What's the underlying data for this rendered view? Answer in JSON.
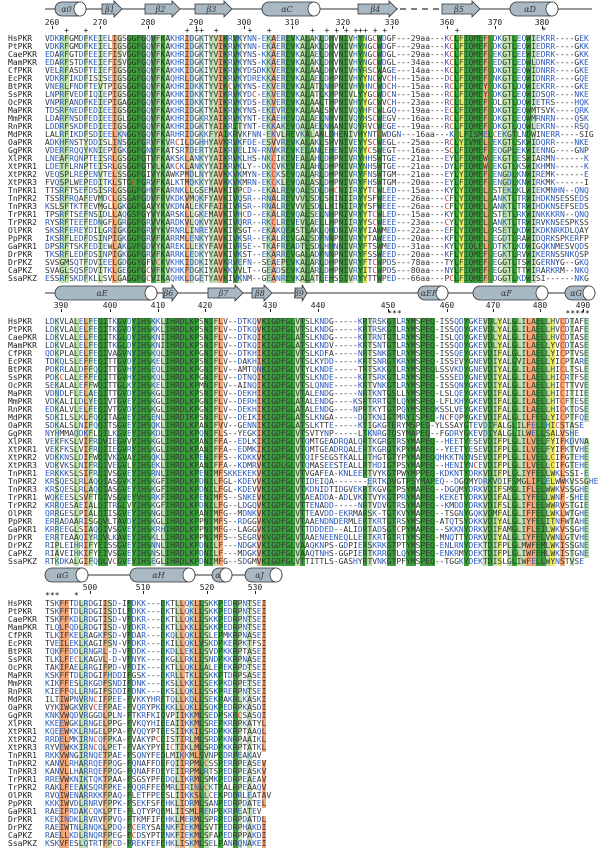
{
  "palette": {
    "identical": "#3a9e3a",
    "conserved": "#bfe0ae",
    "hydrophobic": "#f2a77a",
    "aromatic": "#e6ea5c",
    "text_charged": "#2b5cc0",
    "text_cys": "#d83a2a",
    "text_default": "#333333",
    "structure_fill": "#a9b9c4",
    "structure_stroke": "#333333"
  },
  "species": [
    "HsPKR",
    "PtPKR",
    "CaePKR",
    "MamPKR",
    "CfPKR",
    "EcPKR",
    "BtPKR",
    "SsPKR",
    "OcPKR",
    "MaPKR",
    "MmPKR",
    "RnPKR",
    "MdPKR",
    "OaPKR",
    "GgPKR",
    "XlPKR",
    "XtPKR1",
    "XtPKR2",
    "XtPKR3",
    "TnPKR1",
    "TnPKR2",
    "TnPKR3",
    "TrPKR1",
    "TrPKR2",
    "OlPKR",
    "PpPKR",
    "GaPKR1",
    "DrPKR",
    "DrPKZ",
    "CaPKZ",
    "SsaPKZ"
  ],
  "blocks": [
    {
      "structure": [
        {
          "type": "helix",
          "label": "α0"
        },
        {
          "type": "strand",
          "label": "β1"
        },
        {
          "type": "strand",
          "label": "β2"
        },
        {
          "type": "strand",
          "label": "β3"
        },
        {
          "type": "helix",
          "label": "αC"
        },
        {
          "type": "strand",
          "label": "β4"
        },
        {
          "type": "disordered",
          "label": ""
        },
        {
          "type": "strand",
          "label": "β5"
        },
        {
          "type": "helix",
          "label": "αD"
        }
      ],
      "numbers": [
        "260",
        "270",
        "280",
        "290",
        "300",
        "310",
        "320",
        "330",
        "360",
        "370",
        "380"
      ],
      "markers": [
        {
          "col": 4,
          "mark": "+"
        },
        {
          "col": 8,
          "mark": "+"
        },
        {
          "col": 29,
          "mark": "+"
        },
        {
          "col": 31,
          "mark": "+"
        },
        {
          "col": 32,
          "mark": "+"
        },
        {
          "col": 35,
          "mark": "+"
        },
        {
          "col": 42,
          "mark": "+"
        },
        {
          "col": 46,
          "mark": "+"
        },
        {
          "col": 55,
          "mark": "+"
        },
        {
          "col": 58,
          "mark": "+"
        },
        {
          "col": 60,
          "mark": "+"
        },
        {
          "col": 62,
          "mark": "+"
        },
        {
          "col": 64,
          "mark": "+"
        },
        {
          "col": 65,
          "mark": "+"
        },
        {
          "col": 66,
          "mark": "+"
        },
        {
          "col": 68,
          "mark": "+"
        },
        {
          "col": 70,
          "mark": "+"
        },
        {
          "col": 85,
          "mark": "+"
        },
        {
          "col": 103,
          "mark": "*"
        }
      ],
      "sequences": [
        "VDKRFGMDFKEIELIGSGGFGQVFKAKHRIDGKTYVIKRVKYNN-EKAEREVKALAKLDHVNIVHYNGCWDGF---29aa---KCLFIQMEFCDKGTLEQWIEKRR----GEK",
        "VDKRFGMDFKEIELIGSGGFGQVFKAKHRIDGKTYVIKRVKYNN-EKAEREVKALAKLDHVNIVHYNGCWDGF---29aa---KCLFIQMEFCDKGTLEQWIEDRR----GKK",
        "EDARFGTDFEEIEFISVGGFGQVFKAKHRIDGKTYVIKRVKYNS-KKAEREVKALAELDHVNIVHYNGCWDGL---29aa---KCLFIQMEFCEKGTLEEWIEDRK----GKK",
        "EDARFSTDFKEIEFISVGGFGQVFKAKHRIDGKTYVIKRVKYNS-KKAEREVKALAKLDHVNIVHYNGCWDGL---34aa---KCLFIQMEFCEDGTLEDWLDNRK----GKE",
        "VELRFASDFTEIEFIGSGGYGQVFKAKHKIDGKIYVIKRVKYDSDKKVEREVKALAALDHVNIVHYRSCWAGE---14aa---KCLFIQMEFCDKGTLEQWIDNRR----GKE",
        "VDKRFIKDFISISEIGSGGFGQVFKAQHRLDGKTYVIKRVKYDREKKAEREVKALAELDHPNIVHYYNCWVCH---15aa---DCLFIQMEFCNKGTLEQWIDNRR----GQE",
        "VNERLFNDFTEVTPIGSGGFGQVFKAKHRIDKKTYVIKCVKYNS-EKVEREVKALATLNHPNIVHYHNCWDCH---15aa---RCLFIQMEYCDKGTLDQWIEKRR----GKE",
        "LNPRFVEDFIQIEPIGSGGFGQVFKAKHKIDKKTYVIKRVKYDC-EKVEREVKALATLKHPNIVLYYGCWDCN---15aa---RCLFIQMEYCDKGTLEQWIDSQR----NKE",
        "VNPRFANDFKEIEPIGAGGFGQVFKAKHKIDKKTYVIKRVKYDS-EKVEREVKALAALTHPNIVHYYGCWVCH---23aa---RCLLIQMEFCDLGTLDQWIETRS----HQK",
        "TDSRFNEDFEDIEEIGSGGFGQVFKAKHRIDGKTYAIKRVKYNS-EKEVREVKALAALSHVNIVQYHFCWLGQ---19aa---ECLFIQMEFCDKGTLEQWMTSVK----QRK",
        "LDARFNSDFEDIEEIGLGGFGQVFKAKHRIDGKRYAIKRVKYNT-EKAEHEVQALAELNHVNIVQYHSCWEGV---16aa---RCLFIQMEFCDKGTLEQWMRNRN----QSK",
        "LDDRFSKDFEDIEEIGSGGFGQVFKAKHRIDGKTYAIKRITYNT-EKKAKEVQALAELNHANIVQYRVCWEGE---19aa---RCLFIQMEFCDKGTLQQWLEKRN----RSQ",
        "LALRFIKDFSDIEELKNGGYGQVFKARHRIDGKKFYAIKRVKFNN-EKVLREVKALANLDHENIVHYNTCWDGN---16aa---KCLFISMELCEKGTLNDWINERR----SIG",
        "ADKHFNSTYDDISLINSGGFGRVFKVRCILDGHHYAVKRVKFDE-ESVVREVKALAKLSHVNIVEYYSCWEGL---25aa---RCLYIVMELCEKGTLSKWIDQRR----NKE",
        "VDERFRQQYKNIEPIGKGGFGNVFKATSRTDERTYAIKRVELIN-RNVKREVKELANLEHENIVRYYCSWEGT---16aa---SCLFIQMEFCEQGPLEKWIENNG----GNP",
        "LNEAFRQNPTEISRLGSGGFGTVFKAKSKLANKYYAIKRVKLHS-NKCIKEVEALAHLDHPNIVRYHHSWTGE---21aa---EYLFIQMEWCEKGTLESWIARMN------K",
        "LDETFLRNPTEISRLGSGGFGTVLKAKCKLANKYYAIKRVKLY--DKCVKEVEALAHLDHPNIVRYNHSWTGE---21aa---DYLFIQMEWCEKGTLKSWIKHMN------K",
        "VEQSPLREPENVTELSSGGFGIVYKAWKPMDLNYYAVKKVKMYN-EKCKSEVQALARLDHPNIVRYFNSWTGM---21aa---EYLYIQMEFCENGDLKNWIREMK------E",
        "FVQSPLWEPEDITKLSTGCFGRVFKALKTMDKKYYAVKKVKMRN-EKCKLEVQALASLDHPNIVRYFHSWTGM---20aa---EYLFIQMEFCENGDLKNWIRKMK------I",
        "TTSRFTSEFDSISRLGSGGFGHVFKARNKLLGSEMAVKIVPCD--EKALREVQALSDLDHCNIIRYYTCWLED---15aa---KYLYIQMELCSTEKLKLWIEKMNHN--QNQ",
        "TSSRFRQAFEVMDCLGSGAFGDVFRVKDKVMQKFYAVKIVQSR--RNALREVVVLSDLSHINIIRYYSFWEEE---26aa---CFLYIQMELCANKTLTRWIHDKNSESSEDS",
        "KSLSFTKTFEVMGLLGKGGFGAVYKVKDNALEKFFAIKIVRSR--RNALREVVVLSDLLHINIIRYYSFWEEE---26aa---CFLYIQMELCANKTLTRWIHDKNSEFSEDS",
        "TPSRFTSEFNSIDLLAQGSFGYVYKARSKLLGKEMAVKIVHCD--EKALREVQALSELNHPNIVRYYTCWLED---15aa---KYLYIQMELCSTETLRKWINKKKRN--QNQ",
        "RYSRFTEEFEDNGFLGRGGFGRVVKARDKVLQKVYAVKIVQRR--RKCLREVEVLAELLHPNIIRYYSCWEEE---23aa---CYLYIQMELCANKTLTRWIRVKNSESPKSS",
        "SKSRFEREYDILGRIGKGGFGRVYKVRNRLINREYAVKIVSGT--EKAKQEASTLAKLQHDNIVRYYIAWMED---22aa---EFLYIQMELCRSETLKDWIKDKNRKDLQAY",
        "IKSRFLEDFDSINPIGKGGFGRVFKARRMLENKYYAVKIVKSR--EKALREVGALSDFNNPNIVRYYTAWEED---20aa---KFLYIQMELCEGDTLRAWIDQRKSPKERFP",
        "DPSRFTSKFEDIEWLAKGVFGDVYKAREKLLEKYFAVKIVRSE--TKAFREADTLSDLHHNNIVRYFTSWMED---31aa---KYLYIQLELCDTKTLKDWIGQKNMESVQDS",
        "TKSRFLEDFDSINPIGKGGFGRVFKARRKLEDKYYAVKIVKST--EKARREVGALADFNNPNIVRYFSSWEED---20aa---KFLYIQMEFCEGKTLRVWIKERNSSNKQSP",
        "SVSGMSQTFDVIEELGDGGYGFVCKVKHKIDDKIYAVKRVEFN--SEAEPEVKALARLDHPNIVRYFTCWPDS---78aa---TYLFIQMEFCEGGTLTSWIGERNYG--GKQ",
        "SVAGLSQSFDVITKLGEGGFGCVFKVKHKFDGKIYAVKKVVLT--GEADSEVKALARLDHPNIVRYITCWPDS---80aa---NYLFIQMEFCEGGTLTTWIRARKRM--NKQ",
        "ESSRFSKDFKLLSVLGAGGFGCVIKAQHKLDGETYAVKIVKNM--GEANREVKALATLEHSSIVRYYTTWPED---66aa---PCLFIQMEFCDGGTLKDWISI------NKG"
      ]
    },
    {
      "structure": [
        {
          "type": "helix",
          "label": "αE"
        },
        {
          "type": "strand",
          "label": "β6"
        },
        {
          "type": "strand",
          "label": "β7"
        },
        {
          "type": "strand",
          "label": "β8"
        },
        {
          "type": "strand",
          "label": "β9"
        },
        {
          "type": "helix",
          "label": "αEF"
        },
        {
          "type": "helix",
          "label": "αF"
        },
        {
          "type": "helix",
          "label": "αG"
        }
      ],
      "numbers": [
        "390",
        "400",
        "410",
        "420",
        "430",
        "440",
        "450",
        "460",
        "470",
        "480",
        "490"
      ],
      "markers": [
        {
          "col": 71,
          "mark": "*"
        },
        {
          "col": 72,
          "mark": "*"
        },
        {
          "col": 73,
          "mark": "*"
        },
        {
          "col": 108,
          "mark": "*"
        },
        {
          "col": 109,
          "mark": "*"
        },
        {
          "col": 110,
          "mark": "*"
        },
        {
          "col": 111,
          "mark": "*"
        },
        {
          "col": 112,
          "mark": "*"
        }
      ],
      "sequences": [
        "LDKVLALELFEQITKGVDYIHSKKLIHRDLKPSNIFLV--DTKQVKIGDFGLVTSLKNDG-----KRTRSKGTLRYMSPEQ-ISSQDYGKEVDLYALGLILAELLHVCDTAFE",
        "LDKVLALELFEQITKGVDYIHSKKLIHRDLKPSNIFLV--DTKQVKIGDFGLVTSLKNDG-----KRTRSKGTLRYMSPEQ-ISSQDYGKEVDLYALGLILAELLHVCDTAFE",
        "LDKVLALELFEQITKGLDYIHSKNIIHRDLKPSNIFLV--DTKQIKIGDFGLATSLKNDG-----KRTRNTGTLRYMSPEQ-ISLQDYGKEVDLYALGLILAELLHVCDTASE",
        "LDKVLALELFEQITKGLDYIHSKNIIHRDLKPSNIFLV--DTKQIKIGDFGLATSLKNDV-----KRTSNTGTLRYMSPEQ-ISSQDYGKEVDLYALGLILAELLYVCDTASE",
        "QDKPLALELFEQIVAGVNYIHSKQLIHRDLKPGNIFLV--DTKHIKIGDFGLVTSLKDFA-----NRTSNKGTLRYMSPEQ-ISSQEYGKEVDIFALGLILAELLYICPTVSE",
        "TDKQLSLEFFEQITTGVDYIHSKELIHRDLKPSNIFLV--DAKHIKIGDFGLVTSLKYDD-----KRTSNRGTKRYMSPEQ-ISSEVYGNEVDIYALGVILAELLYICPTARE",
        "PDKRLALDFFQQITTGVHYIHSEQLIHRDLKPGNIFLV--AMTQNKIGDFGLVTYLKNDE-----TRTSKKGTLRYMSPEQLSSVKDYGNEVDIYALGLILAELLHICLTSLE",
        "PDKCLALEFFEQITTGVHYIHSKQLIHRDLKPGNIFLV--DTNQIKIGDFGLVTSLKNDE-----KRTSRKGTLRYMSPEQ-SSSEDYGNEVDIYALGLILAELLHICRTFSE",
        "SEKALALEFFWQITTGLKYIHSKELIHRDLKPMNIFLV--AINQIKIGDFGLVTSLQNNE-----KRTVNKGTLRYMSPEQ-ISSQNYGKEVDIYALGLILAELLHICTTVVE",
        "VDNDLFLELAEQITTGVDYIHSKGLIHRDLKPSNIFLV--DEKHIKIGDFGLVTALENDG-----NRTKNTGSLLYMSPEQ-LSLQEYGKEVDIFALGLILAELLHICITIIE",
        "VDKALILDLYEQIVTGVEYIHSKGLIHRDLKPGNIFLV--DERHIKIGDFGLATALENDG----KSRTRRTGTLQYMSPEQ-LFLKHYGKEVDIFALGLILAELLHTCFTESE",
        "EDKALVLELFEQIVTGVDYIHSKGLIHRDLKPGNIFLV--DEKHIKIGDFGLATALENDG----NPRTKYTGTPQYMSPEQKSSLVEYGKEVDIFALGLILAELLHICKTDSE",
        "SDKILSLKLFQQITAGVEYIHSENLIHRDIKPSNIFLV--DEIKIKIGDFGLATSLKNGA-----DQTKNIGTMRYISPEQ-NCFQPYGKEVDIFALGLILFELLYICPTFQE",
        "SDKALSLNIFQQITSGVEYIHSQKLIHRDLKPANIFVV--GENNIKIGDFGLATSLKTTE-----KTIGKGTERYMSPEQ-YLSSAYGTEVDIFALGLILFELLHICSTASE",
        "NYHMMAQDKFLQILKGVEYIHSKDLIHRDLKPQNIFLS--YEGKIKIGDFGLVTSVTYNP-----LTKNRGTQSYMAPEQ--FGDRYGKEVDIYALGLILWELLSALVSHE",
        "VEKFKSLVIFRQVIEGVVYIHSKGLIHRDLKPANIFFA--EDLKIKIGDFGLVTQMTGEADRQALQRTKGRGTRSYMAPEQ--HEETYESEVDIFPLGLILVELFYIFKDVNA",
        "VEKFKSLVIFRQIIEGVRYIHSKGLIHRDLKPANIFFA--EDMKIKIGDFGLVTQMTGEADRQALERTKGRGTKPYMAPEQ--YEETYESEVDIFPLGLILVELFYIFKTVHE",
        "VDKKNSLDIFWQIVKGVAYIHSQKLIHRDLKPENIFFS--KDKKVKIGDFGLVTQIFSEGSTKALLRTHGTGTYPYMAPEQQHKKTNYNSEVDIFPLGLILVELLCIFGTEHE",
        "VDKVKSLNIFRQIVEGVLYIHSEKLIHRDLKPANIFFA--KDMRVKIGDLGLVTQMASEESTEALLRTHDIGTPSYMAPEQ--HENIYNCEVDIFPLGLILVELLCIFGTEHE",
        "ERKKKSLSIFRQIVSGVEYIHSRNLIHRDLKPENIMFSKKEKEKVKIGDFGLVTVGAFEA-KNLEERTVYKGTPWYMPPEQ-KDKNTYDRKVDIFPLGLIYFELLWKLSSI-E",
        "KRSQESLRLAQQIASGVKYIHSKGFIHRDLKPDNILFGL-KDEVVKIGDFGLVTIDEIQA-------ERTKDVGTPSYMAPEQ--DGQMYDRKVDIFSMGLIFLELWWKVSSGHE",
        "KRSQESLRLAQQIASGVEYIHSKGFIHRDLKPDNILFGL-KDEVVKIGDFGLVTKDNIDTIDGVEKRTKGVGTPSYMAPEQ--DGQMYDRKVDIFSMGLIFLELWWKVSSGHE",
        "WQKEESLSVFTQIVSGVEYVHSRKFIHRDLKPENIMFS--SNKEVKIGDFGLVTAEADDA-ADLVKRTVYKGTPRYMAPEQ-KEKETYDRKVDIFALGLIYFELLWNF-SHEE",
        "KRRQESAEIALQITRGLVYIHSKGFIHRDLKPDNILFG--LDGQVKIGDFGLVTTENADD-----NRTVDVGTRSYMAPEQ--KMDDYDRKVDIFSLGLIFLELWWRVSTGIE",
        "QRRGESLPIALQIISGVEYIHSNGLIHRDLKPANIMFG--MDNKVKIGDFGLVTTEAVDD-EKRMARSK-TGTKVYMAPEQ--TSGNYGQKVDMFALGLIFFELLWKLWTGHE",
        "ERRADAARISGQVLTAVDYIHSKGLIHRDLKPPNIMFS--RDGGVKVGDFGLVTAAENDNDERMLERTKRTGTRSYMSPEQ-ATQTSYDKKVDIYALGLIYFELITNFWTAHE",
        "KRREEGLSIAQQIVSGVEYIHSKRHIHRDLKPPNIMFG--LAGGVKIGDFGLVTTDDDED--ALIDRTADSGTCPYMAPEQ--SKKNYDRKVDIFAMGLIFLEILWKVSSGHE",
        "ERRTEAAQIYRQVLKAVEYIHSKLLIHRDLKPPNIMFS--SEGRVKVGDFGLVTAAENEENEQLLERTKRTGTRTYMSPEQ-MNQTTYDRKVDIYALGLIYFELVWNLGTVHE",
        "RIPLEIHRIFYEISSGVEYIHSNNLIHRDLKPDNILF---NDGKVKIGDFGLVAAQKNPS-GDPIERSKRKGTPTYMSPEQ-ENLRNYDEKTDIFPLGLMWFEMLWKISSGNE",
        "RIAVEIHKIFYEIVSGVEYIHSNSLIHRDLKPDNILF---MDGKVKIGDFGLVAAQTNHS-GGPIERTKRRGTLQYMSPEQ-ENKRMYDEKTDIFPLGLIWFEHLWKISTGNE",
        "RTKDKALGIFQQLVCGVEYIHSEGLIHRDLKPDNIMFG--SDGMVKIGDFGLVTTITTLS-GASHYRTVNKGTPFYMSPEQ--TGGKYDEKTDISLGLIWFELLWYNSTVSE"
      ]
    },
    {
      "structure": [
        {
          "type": "helix",
          "label": "αG"
        },
        {
          "type": "helix",
          "label": "αH"
        },
        {
          "type": "helix",
          "label": "α"
        },
        {
          "type": "helix",
          "label": "αJ"
        }
      ],
      "numbers": [
        "500",
        "510",
        "520",
        "530"
      ],
      "markers": [
        {
          "col": 0,
          "mark": "*"
        },
        {
          "col": 1,
          "mark": "*"
        },
        {
          "col": 2,
          "mark": "*"
        },
        {
          "col": 6,
          "mark": "*"
        }
      ],
      "sequences": [
        "TSKFFTDLRDGIISD-IFDKK---EKTLLQKLLSKKPEDRPNTSEI",
        "TSKFFTDLRDGIISDILFDKK---EKTLLQKLLSKKPEDRPNTSEI",
        "TSKFFKDLRDGTISD-VFDKR---EKTLLQKLLSKKPEDRPNTSEI",
        "TLQLFQDLRDGTISD-VYDKR---EKTLLKKLLSKKPEDRPNTSEI",
        "TLKIFKELRAGKFSD-VFDAR---EKQLLQKLLSLEPMKRPNASEI",
        "TVEILEKLKAGIFSN-VFDKR---EKILLQKLVSKDPKERPKTFSI",
        "TQKFFDDLRNGRL-D-VFDDK---EKDLLEKLLSVDPKKRPTASEI",
        "TLKLFECLKAGVL-D-VFNYK---EKGLLRKLLSNDPKKRPNASEI",
        "TAKIFAELRRGIFPD-VFDIK---EKTLLQKLLALEPEKRPDTSEI",
        "KSKFFTDLRDGIFHDDIFGSK---EKRLLTKLLSKKPTDRPSASEI",
        "KIKFFESLRKGDFSNDIFDNK---EKSLLKKLLSEKPKDRPETSEI",
        "KIEFFQLLRNGIFSDDIFDNK---EKSLLQKLLSSKPRERPNTSEI",
        "ILTIWPNVRNCIFPEE-FVKKYHRETQLLKQLLSEKPAKRLKASKI",
        "VYKIWGKVRVCEFPAE-FVQRYPKEKKLLQKLLSQKPEDRPKASDI",
        "KNKVWQDVRGGDLPLN-FTKRFKIQVPIIKKMLSEDPSKRCSASQI",
        "KKEEWGKLRNGELPPG-FVKQYHIEEAIIKKMLSREPKRRPKATYL",
        "KQEEWKKLRNGELPPA-FVQQYPTEESIIKKILSRDPKKRPTAAQL",
        "RRDELMKIRNCQFPKA-FVAKYPCEISTIRLMLSRDPKNRPAAIKL",
        "RYVEWKKIRNCQLPET-FVAKYPYEICTIKLMLSRDPKKRPTATKL",
        "RKKVWNGIRNQETPAE-FSQNYFEDLMIKKMLSVNPEDRPEAKAV",
        "KANVLRHARRQEFPQG-FQNAFFDEFQIIRPMLCSSPERRPEASEV",
        "KANVLLHARRQEFPQG-FQNAFFDEYEIIRPMLRTSPEDRPEASKV",
        "RREVWKNIKTQKTPAA-FSGSYPFEDQLIKRMLSMKPEDRPEAEAV",
        "RAKLFEEAKSQRFPKE-FQQRFFEEMRLIRINLCKTPALRPEAAQV",
        "RVQIWENARRKKFPAQ-FLETFPEESLIIKKSLLCEKPDDRLEATAV",
        "KKKIWVDLRNRVFPPK-FSEKFSFEHKLIDRMLSANPEDRPDATEL",
        "RAEIFRDAKCQKLPTE-FLQTYPQEMLIISMLRENPEKRPEATEV",
        "KEKINDKLRVRVFPVQ-FTKMFIFEHKLMERMLSPRPEDRPDATDL",
        "RAEIWTNLRNQKLPDQ-FCERYSAENKFIEKMLSVTPEDRPHAKDI",
        "RAELLKDLRNQRFPEG-FCDSYPTENKFIEKMLSFAPEDRPPAKDI",
        "KSKVFESLQTRTFPCD-FREKFEFEHKLISKMLSELPANRQNAKEI"
      ]
    }
  ]
}
